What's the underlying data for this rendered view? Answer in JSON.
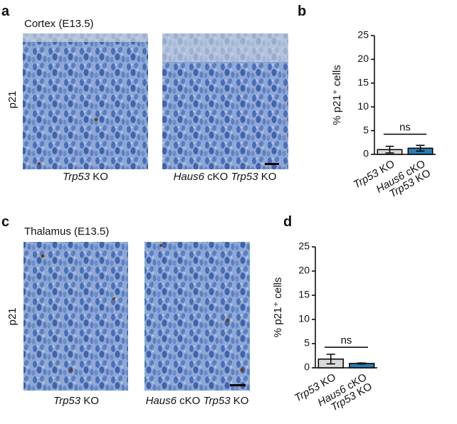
{
  "panels": [
    {
      "letter": "a",
      "region": "Cortex (E13.5)",
      "stain": "p21",
      "images": [
        "Trp53 KO",
        "Haus6 cKO Trp53 KO"
      ]
    },
    {
      "letter": "c",
      "region": "Thalamus (E13.5)",
      "stain": "p21",
      "images": [
        "Trp53 KO",
        "Haus6 cKO Trp53 KO"
      ]
    }
  ],
  "chart_letters": [
    "b",
    "d"
  ],
  "chart_data": [
    {
      "type": "bar",
      "ylabel": "% p21⁺ cells",
      "categories": [
        "Trp53 KO",
        "Haus6 cKO Trp53 KO"
      ],
      "values": [
        1.0,
        1.3
      ],
      "errors": [
        0.7,
        0.6
      ],
      "colors": [
        "#d9d9d9",
        "#2b7bb0"
      ],
      "ylim": [
        0,
        25
      ],
      "yticks": [
        0,
        5,
        10,
        15,
        20,
        25
      ],
      "annotation": "ns"
    },
    {
      "type": "bar",
      "ylabel": "% p21⁺ cells",
      "categories": [
        "Trp53 KO",
        "Haus6 cKO Trp53 KO"
      ],
      "values": [
        1.8,
        0.9
      ],
      "errors": [
        1.0,
        0.1
      ],
      "colors": [
        "#d9d9d9",
        "#2b7bb0"
      ],
      "ylim": [
        0,
        25
      ],
      "yticks": [
        0,
        5,
        10,
        15,
        20,
        25
      ],
      "annotation": "ns"
    }
  ]
}
